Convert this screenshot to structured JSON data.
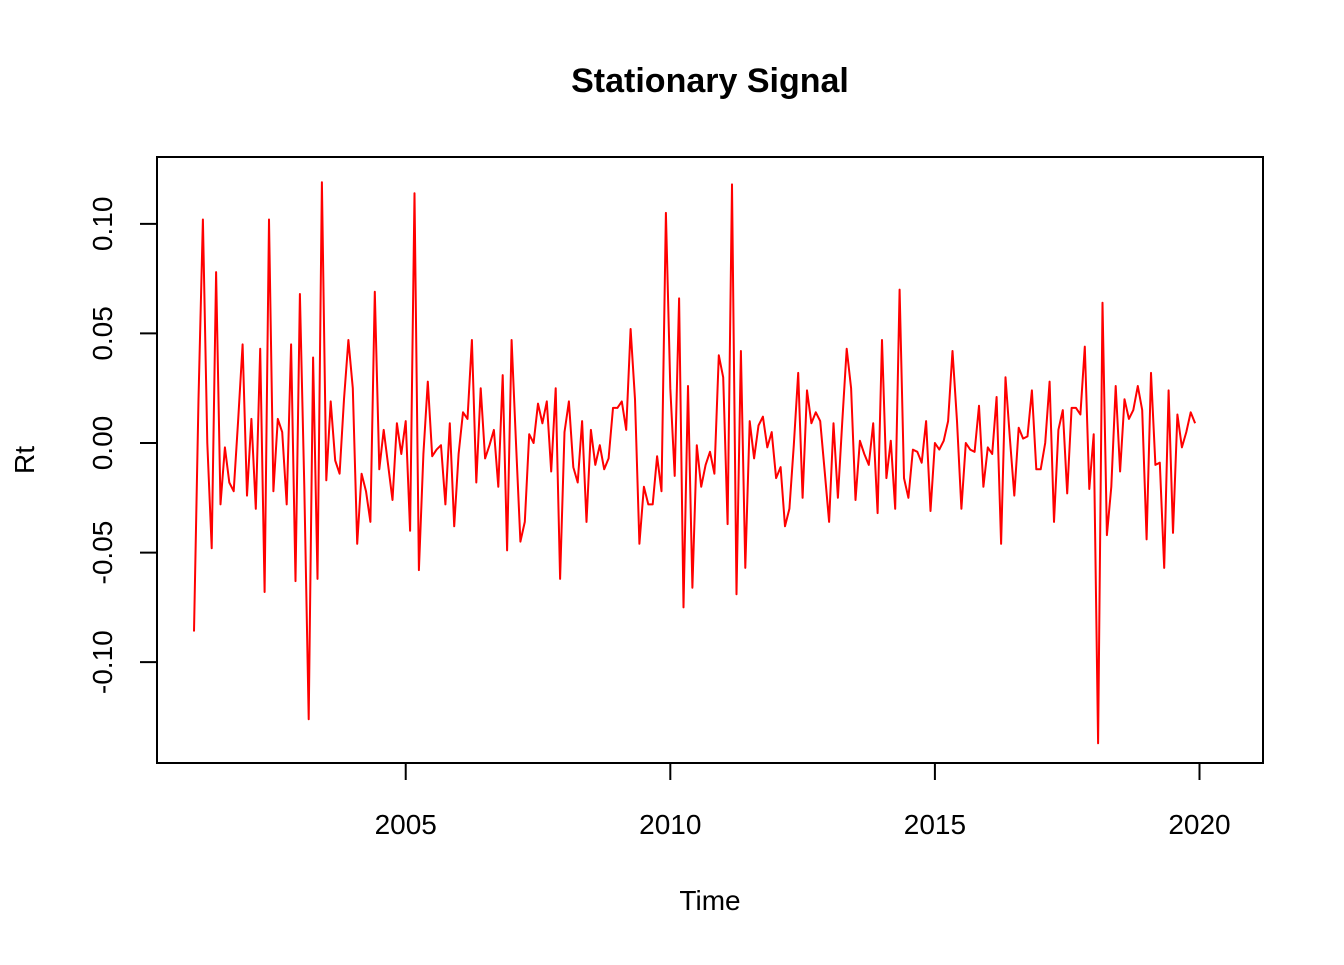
{
  "chart_data": {
    "type": "line",
    "title": "Stationary Signal",
    "xlabel": "Time",
    "ylabel": "Rt",
    "xlim": [
      2000.3,
      2021.2
    ],
    "ylim": [
      -0.146,
      0.1305
    ],
    "x_ticks": [
      2005,
      2010,
      2015,
      2020
    ],
    "y_ticks": [
      -0.1,
      -0.05,
      0.0,
      0.05,
      0.1
    ],
    "x_tick_labels": [
      "2005",
      "2010",
      "2015",
      "2020"
    ],
    "y_tick_labels": [
      "-0.10",
      "-0.05",
      "0.00",
      "0.05",
      "0.10"
    ],
    "grid": false,
    "legend": "none",
    "line_color": "#ff0000",
    "x_start": 2001.0,
    "x_step": 0.0833333,
    "values": [
      -0.086,
      0.02,
      0.102,
      0.0,
      -0.048,
      0.078,
      -0.028,
      -0.002,
      -0.018,
      -0.022,
      0.01,
      0.045,
      -0.024,
      0.011,
      -0.03,
      0.043,
      -0.068,
      0.102,
      -0.022,
      0.011,
      0.005,
      -0.028,
      0.045,
      -0.063,
      0.068,
      -0.02,
      -0.126,
      0.039,
      -0.062,
      0.119,
      -0.017,
      0.019,
      -0.008,
      -0.014,
      0.02,
      0.047,
      0.025,
      -0.046,
      -0.014,
      -0.022,
      -0.036,
      0.069,
      -0.012,
      0.006,
      -0.01,
      -0.026,
      0.009,
      -0.005,
      0.01,
      -0.04,
      0.114,
      -0.058,
      -0.005,
      0.028,
      -0.006,
      -0.003,
      -0.001,
      -0.028,
      0.009,
      -0.038,
      -0.005,
      0.014,
      0.011,
      0.047,
      -0.018,
      0.025,
      -0.007,
      -0.001,
      0.006,
      -0.02,
      0.031,
      -0.049,
      0.047,
      0.0,
      -0.045,
      -0.036,
      0.004,
      0.0,
      0.018,
      0.009,
      0.019,
      -0.013,
      0.025,
      -0.062,
      0.005,
      0.019,
      -0.011,
      -0.018,
      0.01,
      -0.036,
      0.006,
      -0.01,
      -0.001,
      -0.012,
      -0.007,
      0.016,
      0.016,
      0.019,
      0.006,
      0.052,
      0.02,
      -0.046,
      -0.02,
      -0.028,
      -0.028,
      -0.006,
      -0.022,
      0.105,
      0.025,
      -0.015,
      0.066,
      -0.075,
      0.026,
      -0.066,
      -0.001,
      -0.02,
      -0.01,
      -0.004,
      -0.014,
      0.04,
      0.03,
      -0.037,
      0.118,
      -0.069,
      0.042,
      -0.057,
      0.01,
      -0.007,
      0.008,
      0.012,
      -0.002,
      0.005,
      -0.016,
      -0.011,
      -0.038,
      -0.03,
      -0.001,
      0.032,
      -0.025,
      0.024,
      0.009,
      0.014,
      0.01,
      -0.013,
      -0.036,
      0.009,
      -0.025,
      0.01,
      0.043,
      0.025,
      -0.026,
      0.001,
      -0.005,
      -0.01,
      0.009,
      -0.032,
      0.047,
      -0.016,
      0.001,
      -0.03,
      0.07,
      -0.016,
      -0.025,
      -0.003,
      -0.004,
      -0.009,
      0.01,
      -0.031,
      0.0,
      -0.003,
      0.001,
      0.01,
      0.042,
      0.01,
      -0.03,
      0.0,
      -0.003,
      -0.004,
      0.017,
      -0.02,
      -0.002,
      -0.005,
      0.021,
      -0.046,
      0.03,
      0.002,
      -0.024,
      0.007,
      0.002,
      0.003,
      0.024,
      -0.012,
      -0.012,
      0.0,
      0.028,
      -0.036,
      0.006,
      0.015,
      -0.023,
      0.016,
      0.016,
      0.013,
      0.044,
      -0.021,
      0.004,
      -0.137,
      0.064,
      -0.042,
      -0.02,
      0.026,
      -0.013,
      0.02,
      0.011,
      0.015,
      0.026,
      0.015,
      -0.044,
      0.032,
      -0.01,
      -0.009,
      -0.057,
      0.024,
      -0.041,
      0.013,
      -0.002,
      0.005,
      0.014,
      0.009
    ]
  }
}
